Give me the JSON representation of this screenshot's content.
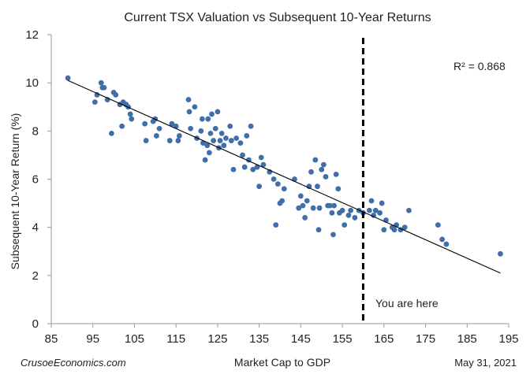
{
  "chart_data": {
    "type": "scatter",
    "title": "Current TSX Valuation vs Subsequent 10-Year Returns",
    "xlabel": "Market  Cap to GDP",
    "ylabel": "Subsequent 10-Year Return (%)",
    "xlim": [
      85,
      195
    ],
    "ylim": [
      0,
      12
    ],
    "xticks": [
      "85",
      "95",
      "105",
      "115",
      "125",
      "135",
      "145",
      "155",
      "165",
      "175",
      "185",
      "195"
    ],
    "yticks": [
      "0",
      "2",
      "4",
      "6",
      "8",
      "10",
      "12"
    ],
    "grid": false,
    "r_squared_label": "R² = 0.868",
    "reference_line": {
      "x": 160,
      "label": "You are here",
      "style": "dashed",
      "color": "#000000"
    },
    "trendline": {
      "x": [
        89,
        193
      ],
      "y": [
        10.1,
        2.1
      ],
      "color": "#000000"
    },
    "point_color": "#3f6ea8",
    "source_label": "CrusoeEconomics.com",
    "date_label": "May 31, 2021",
    "points": [
      [
        89,
        10.2
      ],
      [
        95.5,
        9.2
      ],
      [
        96,
        9.5
      ],
      [
        97,
        10.0
      ],
      [
        97.3,
        9.8
      ],
      [
        97.7,
        9.8
      ],
      [
        98.5,
        9.3
      ],
      [
        99.5,
        7.9
      ],
      [
        100,
        9.6
      ],
      [
        100.5,
        9.5
      ],
      [
        101.5,
        9.1
      ],
      [
        102,
        8.2
      ],
      [
        102.3,
        9.2
      ],
      [
        103,
        9.1
      ],
      [
        103.5,
        9.0
      ],
      [
        104,
        8.7
      ],
      [
        104.3,
        8.5
      ],
      [
        107.5,
        8.3
      ],
      [
        107.8,
        7.6
      ],
      [
        109.5,
        8.4
      ],
      [
        110,
        8.5
      ],
      [
        110.3,
        7.8
      ],
      [
        111,
        8.1
      ],
      [
        113.5,
        7.6
      ],
      [
        114,
        8.3
      ],
      [
        115,
        8.2
      ],
      [
        115.5,
        7.6
      ],
      [
        115.8,
        7.8
      ],
      [
        118,
        9.3
      ],
      [
        118.2,
        8.8
      ],
      [
        118.5,
        8.1
      ],
      [
        119.5,
        9.0
      ],
      [
        120,
        7.7
      ],
      [
        121,
        8.0
      ],
      [
        121.3,
        8.5
      ],
      [
        121.5,
        7.5
      ],
      [
        122,
        6.8
      ],
      [
        122.5,
        7.4
      ],
      [
        122.7,
        8.5
      ],
      [
        123,
        7.1
      ],
      [
        123.3,
        7.9
      ],
      [
        123.6,
        8.7
      ],
      [
        124,
        7.6
      ],
      [
        124.5,
        8.1
      ],
      [
        125,
        8.8
      ],
      [
        125.3,
        7.3
      ],
      [
        125.6,
        7.6
      ],
      [
        126,
        7.9
      ],
      [
        126.5,
        7.4
      ],
      [
        127,
        7.7
      ],
      [
        128,
        8.2
      ],
      [
        128.3,
        7.6
      ],
      [
        128.8,
        6.4
      ],
      [
        129.5,
        7.7
      ],
      [
        130.5,
        7.5
      ],
      [
        131,
        7.0
      ],
      [
        131.5,
        6.5
      ],
      [
        132,
        7.8
      ],
      [
        132.5,
        6.8
      ],
      [
        133,
        8.2
      ],
      [
        133.5,
        6.4
      ],
      [
        134.5,
        6.5
      ],
      [
        135,
        5.7
      ],
      [
        135.5,
        6.9
      ],
      [
        136,
        6.6
      ],
      [
        137.5,
        6.3
      ],
      [
        138.5,
        6.0
      ],
      [
        139,
        4.1
      ],
      [
        139.5,
        5.8
      ],
      [
        140,
        5.0
      ],
      [
        140.5,
        5.1
      ],
      [
        141,
        5.6
      ],
      [
        143.5,
        6.0
      ],
      [
        144.5,
        4.8
      ],
      [
        145,
        5.3
      ],
      [
        145.5,
        4.9
      ],
      [
        146,
        4.4
      ],
      [
        146.5,
        5.1
      ],
      [
        147,
        5.7
      ],
      [
        147.5,
        6.3
      ],
      [
        148,
        4.8
      ],
      [
        148.5,
        6.8
      ],
      [
        149,
        5.7
      ],
      [
        149.3,
        3.9
      ],
      [
        149.5,
        4.8
      ],
      [
        150,
        6.4
      ],
      [
        150.5,
        6.6
      ],
      [
        151,
        6.1
      ],
      [
        151.5,
        4.9
      ],
      [
        152,
        4.9
      ],
      [
        152.5,
        4.6
      ],
      [
        152.8,
        3.7
      ],
      [
        153,
        4.9
      ],
      [
        153.5,
        6.2
      ],
      [
        154,
        5.6
      ],
      [
        154.3,
        4.6
      ],
      [
        155,
        4.7
      ],
      [
        155.5,
        4.1
      ],
      [
        156.5,
        4.5
      ],
      [
        157,
        4.7
      ],
      [
        158,
        4.4
      ],
      [
        159,
        4.7
      ],
      [
        160,
        4.6
      ],
      [
        161.5,
        4.7
      ],
      [
        162,
        5.1
      ],
      [
        162.5,
        4.5
      ],
      [
        163,
        4.7
      ],
      [
        164,
        4.6
      ],
      [
        164.5,
        5.0
      ],
      [
        165,
        3.9
      ],
      [
        165.5,
        4.3
      ],
      [
        167,
        4.0
      ],
      [
        167.5,
        3.9
      ],
      [
        168,
        4.1
      ],
      [
        169,
        3.9
      ],
      [
        170,
        4.0
      ],
      [
        171,
        4.7
      ],
      [
        178,
        4.1
      ],
      [
        179,
        3.5
      ],
      [
        180,
        3.3
      ],
      [
        193,
        2.9
      ]
    ]
  }
}
